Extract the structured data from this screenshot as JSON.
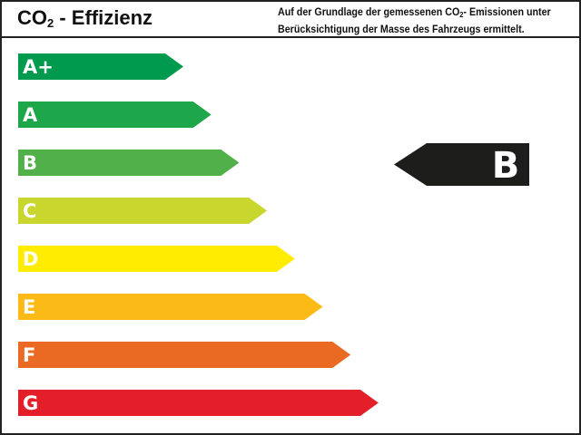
{
  "header": {
    "title_prefix": "CO",
    "title_sub": "2",
    "title_suffix": " - Effizienz",
    "desc_line1_a": "Auf der Grundlage der gemessenen CO",
    "desc_line1_sub": "2",
    "desc_line1_b": "- Emissionen unter",
    "desc_line2": "Berücksichtigung der Masse des Fahrzeugs ermittelt."
  },
  "classes": [
    {
      "label": "A+",
      "color": "#009a4e"
    },
    {
      "label": "A",
      "color": "#1ea64a"
    },
    {
      "label": "B",
      "color": "#52b04a"
    },
    {
      "label": "C",
      "color": "#c8d62e"
    },
    {
      "label": "D",
      "color": "#ffec00"
    },
    {
      "label": "E",
      "color": "#fbba16"
    },
    {
      "label": "F",
      "color": "#ea6a24"
    },
    {
      "label": "G",
      "color": "#e3202a"
    }
  ],
  "rating": {
    "label": "B",
    "color": "#1d1d1b"
  }
}
